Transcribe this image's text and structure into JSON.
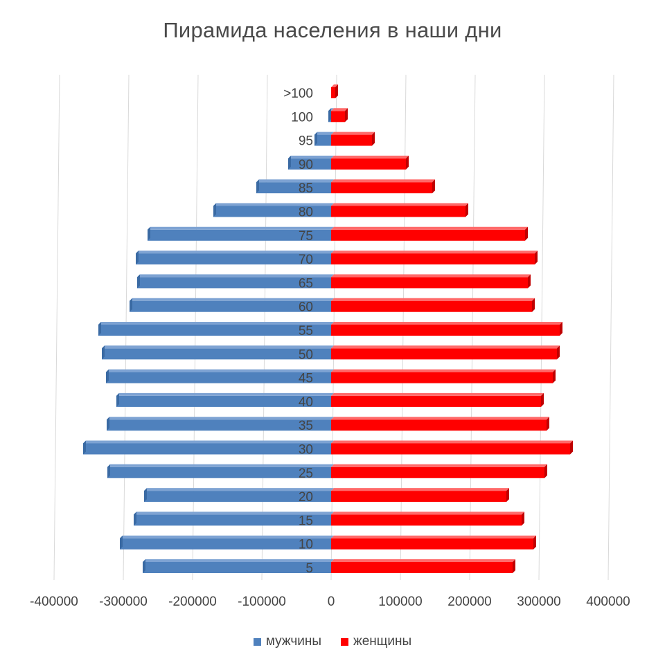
{
  "chart_data": {
    "type": "bar",
    "orientation": "horizontal",
    "title": "Пирамида населения в наши дни",
    "categories": [
      "5",
      "10",
      "15",
      "20",
      "25",
      "30",
      "35",
      "40",
      "45",
      "50",
      "55",
      "60",
      "65",
      "70",
      "75",
      "80",
      "85",
      "90",
      "95",
      "100",
      ">100"
    ],
    "series": [
      {
        "name": "мужчины",
        "color": "#4f81bd",
        "values": [
          -272000,
          -305000,
          -285000,
          -270000,
          -323000,
          -358000,
          -324000,
          -310000,
          -325000,
          -331000,
          -336000,
          -291000,
          -280000,
          -282000,
          -265000,
          -170000,
          -108000,
          -62000,
          -24000,
          -4000,
          0
        ]
      },
      {
        "name": "женщины",
        "color": "#ff0000",
        "values": [
          262000,
          292000,
          275000,
          253000,
          308000,
          345000,
          311000,
          303000,
          320000,
          326000,
          330000,
          290000,
          284000,
          294000,
          280000,
          194000,
          146000,
          108000,
          59000,
          20000,
          6000
        ]
      }
    ],
    "xlim": [
      -400000,
      400000
    ],
    "x_ticks": [
      "-400000",
      "-300000",
      "-200000",
      "-100000",
      "0",
      "100000",
      "200000",
      "300000",
      "400000"
    ],
    "grid": true,
    "legend_position": "bottom"
  }
}
